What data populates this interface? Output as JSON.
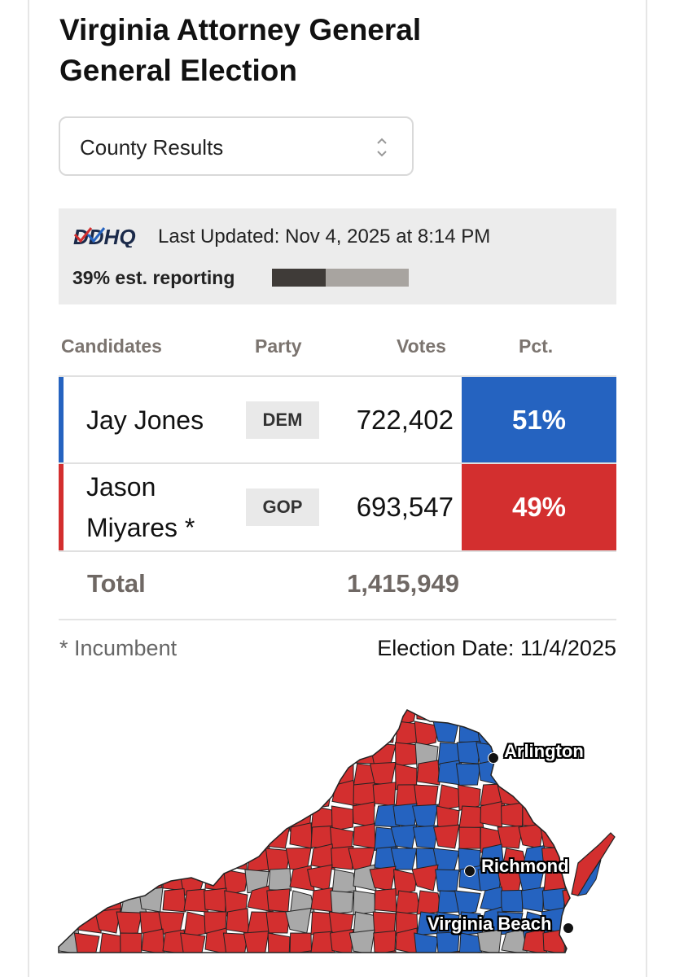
{
  "title": {
    "line1": "Virginia Attorney General",
    "line2": "General Election"
  },
  "view_select": {
    "selected": "County Results",
    "icon": "chevron-up-down-icon"
  },
  "status": {
    "logo_text": "DDHQ",
    "last_updated": "Last Updated: Nov 4, 2025 at 8:14 PM",
    "reporting_label": "39% est. reporting",
    "reporting_fraction": 0.39,
    "bar_colors": {
      "filled": "#3f3b38",
      "remaining": "#a8a4a0"
    }
  },
  "table": {
    "headers": [
      "Candidates",
      "Party",
      "Votes",
      "Pct."
    ],
    "rows": [
      {
        "name": "Jay Jones",
        "party": "DEM",
        "votes": "722,402",
        "pct": "51%",
        "color": "#2563c0"
      },
      {
        "name": "Jason Miyares *",
        "party": "GOP",
        "votes": "693,547",
        "pct": "49%",
        "color": "#d32f2f"
      }
    ],
    "total_label": "Total",
    "total_votes": "1,415,949"
  },
  "footer": {
    "incumbent_note": "* Incumbent",
    "election_date": "Election Date: 11/4/2025"
  },
  "map": {
    "colors": {
      "dem": "#2563c0",
      "gop": "#d32f2f",
      "no_data": "#a9a9a9",
      "border": "#222222"
    },
    "cities": [
      "Arlington",
      "Richmond",
      "Virginia Beach"
    ]
  }
}
